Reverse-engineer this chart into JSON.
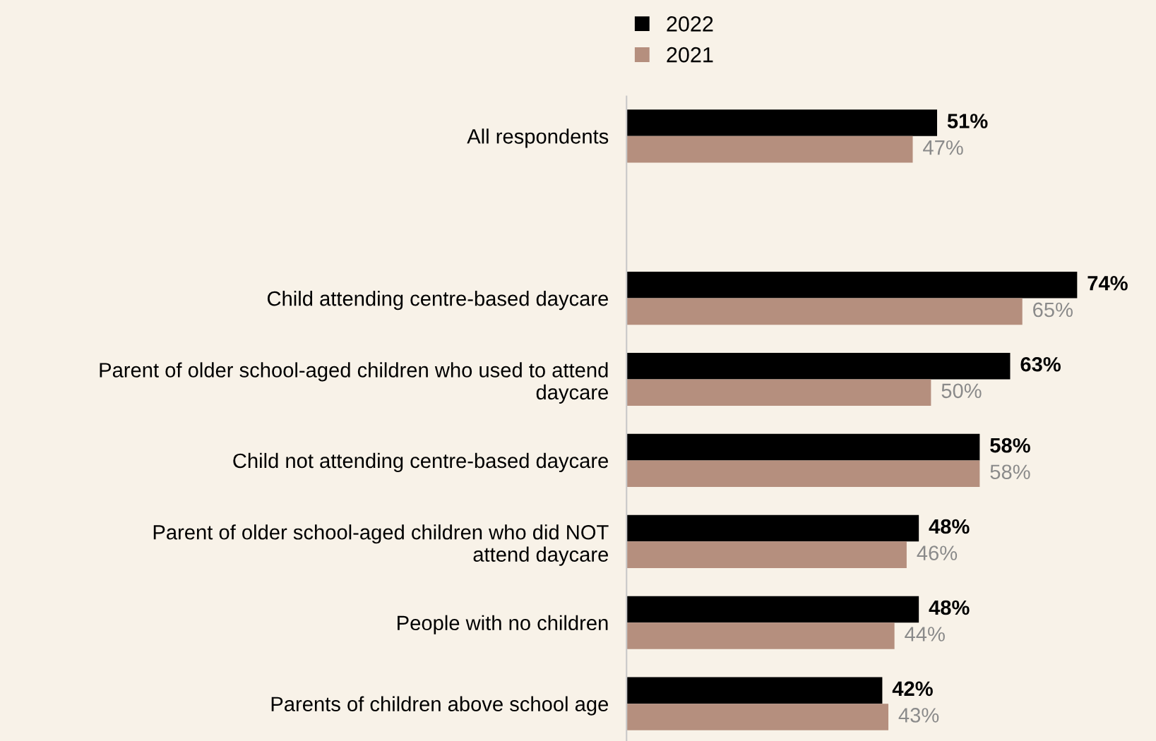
{
  "chart_data": {
    "type": "bar",
    "orientation": "horizontal",
    "categories": [
      "All respondents",
      null,
      "Child attending centre-based daycare",
      "Parent of older school-aged children who used to attend\ndaycare",
      "Child not attending centre-based daycare",
      "Parent of older school-aged children who did NOT\nattend daycare",
      "People with no children",
      "Parents of children above school age"
    ],
    "series": [
      {
        "name": "2022",
        "color": "#000000",
        "values": [
          51,
          null,
          74,
          63,
          58,
          48,
          48,
          42
        ],
        "value_labels": [
          "51%",
          null,
          "74%",
          "63%",
          "58%",
          "48%",
          "48%",
          "42%"
        ]
      },
      {
        "name": "2021",
        "color": "#b58f7e",
        "values": [
          47,
          null,
          65,
          50,
          58,
          46,
          44,
          43
        ],
        "value_labels": [
          "47%",
          null,
          "65%",
          "50%",
          "58%",
          "46%",
          "44%",
          "43%"
        ]
      }
    ],
    "tick_labels": "y",
    "grid": false,
    "legend": "top"
  }
}
